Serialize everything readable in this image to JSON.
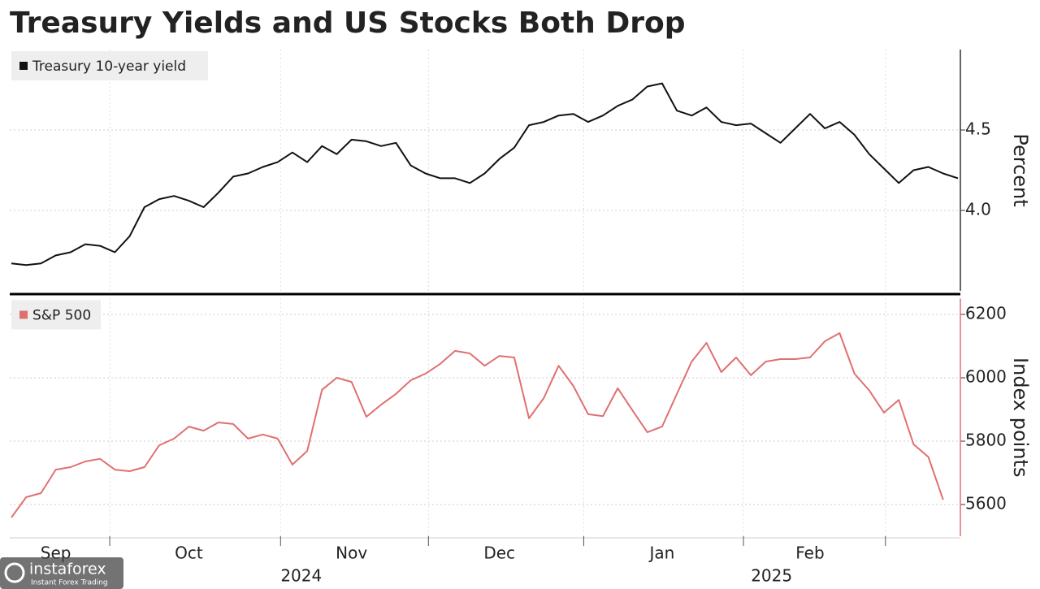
{
  "title": "Treasury Yields and US Stocks Both Drop",
  "watermark": {
    "name": "instaforex",
    "tagline": "Instant Forex Trading"
  },
  "chart_data": [
    {
      "type": "line",
      "axis_label": "Percent",
      "series": [
        {
          "name": "Treasury 10-year yield",
          "color": "#111111",
          "values": [
            3.67,
            3.66,
            3.67,
            3.72,
            3.74,
            3.79,
            3.78,
            3.74,
            3.84,
            4.02,
            4.07,
            4.09,
            4.06,
            4.02,
            4.11,
            4.21,
            4.23,
            4.27,
            4.3,
            4.36,
            4.3,
            4.4,
            4.35,
            4.44,
            4.43,
            4.4,
            4.42,
            4.28,
            4.23,
            4.2,
            4.2,
            4.17,
            4.23,
            4.32,
            4.39,
            4.53,
            4.55,
            4.59,
            4.6,
            4.55,
            4.59,
            4.65,
            4.69,
            4.77,
            4.79,
            4.62,
            4.59,
            4.64,
            4.55,
            4.53,
            4.54,
            4.48,
            4.42,
            4.51,
            4.6,
            4.51,
            4.55,
            4.47,
            4.35,
            4.26,
            4.17,
            4.25,
            4.27,
            4.23,
            4.2
          ]
        }
      ],
      "ylim": [
        3.5,
        5.0
      ],
      "yticks": [
        {
          "value": 4,
          "label": "4.0"
        },
        4.5
      ],
      "grid": true
    },
    {
      "type": "line",
      "axis_label": "Index points",
      "categories": [
        null,
        null,
        null,
        "Sep",
        null,
        null,
        null,
        null,
        null,
        null,
        null,
        null,
        "Oct",
        null,
        null,
        null,
        null,
        null,
        null,
        null,
        null,
        null,
        null,
        "Nov",
        null,
        null,
        null,
        null,
        null,
        null,
        null,
        null,
        null,
        "Dec",
        null,
        null,
        null,
        null,
        null,
        null,
        null,
        null,
        null,
        null,
        "Jan",
        null,
        null,
        null,
        null,
        null,
        null,
        null,
        null,
        null,
        "Feb",
        null,
        null,
        null,
        null,
        null,
        null,
        null,
        null,
        null,
        null
      ],
      "x_group_labels": [
        "2024",
        "2025"
      ],
      "series": [
        {
          "name": "S&P 500",
          "color": "#e07070",
          "values": [
            5559,
            5623,
            5636,
            5710,
            5718,
            5736,
            5744,
            5710,
            5705,
            5718,
            5787,
            5808,
            5846,
            5833,
            5859,
            5854,
            5808,
            5821,
            5808,
            5726,
            5769,
            5962,
            6000,
            5987,
            5877,
            5915,
            5949,
            5992,
            6013,
            6044,
            6085,
            6077,
            6038,
            6069,
            6064,
            5872,
            5936,
            6038,
            5974,
            5885,
            5879,
            5967,
            5897,
            5828,
            5846,
            5949,
            6051,
            6110,
            6018,
            6064,
            6008,
            6051,
            6059,
            6059,
            6064,
            6115,
            6141,
            6013,
            5960,
            5890,
            5930,
            5790,
            5750,
            5615,
            null
          ]
        }
      ],
      "ylim": [
        5500,
        6250
      ],
      "yticks": [
        5600,
        5800,
        6000,
        6200
      ],
      "grid": true
    }
  ]
}
